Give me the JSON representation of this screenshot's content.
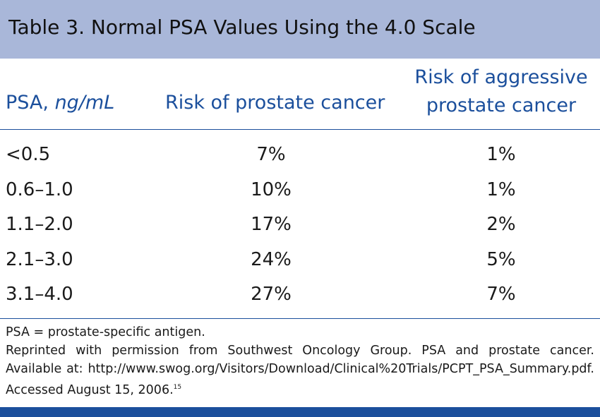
{
  "title": "Table 3.  Normal PSA Values Using the 4.0 Scale",
  "columns": {
    "psa_label": "PSA, ",
    "psa_unit": "ng/mL",
    "risk_label": "Risk of prostate cancer",
    "aggressive_line1": "Risk of aggressive",
    "aggressive_line2": "prostate cancer"
  },
  "rows": [
    {
      "psa": "<0.5",
      "risk": "7%",
      "aggressive": "1%"
    },
    {
      "psa": "0.6–1.0",
      "risk": "10%",
      "aggressive": "1%"
    },
    {
      "psa": "1.1–2.0",
      "risk": "17%",
      "aggressive": "2%"
    },
    {
      "psa": "2.1–3.0",
      "risk": "24%",
      "aggressive": "5%"
    },
    {
      "psa": "3.1–4.0",
      "risk": "27%",
      "aggressive": "7%"
    }
  ],
  "notes": {
    "abbreviation": "PSA = prostate-specific antigen.",
    "source": "Reprinted with permission from Southwest Oncology Group. PSA and prostate cancer. Available at: http://www.swog.org/Visitors/Download/Clinical%20Trials/PCPT_PSA_Summary.pdf. Accessed August 15, 2006.",
    "reference": "15"
  },
  "colors": {
    "title_bar": "#a9b7d9",
    "header_text": "#1b4f9c",
    "bottom_bar": "#1b4f9c"
  }
}
